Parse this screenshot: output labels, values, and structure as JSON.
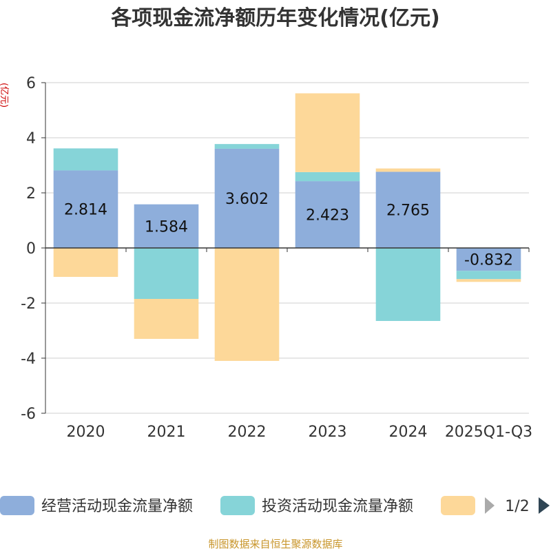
{
  "chart_data": {
    "type": "bar",
    "stacked": true,
    "title": "各项现金流净额历年变化情况(亿元)",
    "ylabel": "(亿元)",
    "xlabel": "",
    "categories": [
      "2020",
      "2021",
      "2022",
      "2023",
      "2024",
      "2025Q1-Q3"
    ],
    "ylim": [
      -6,
      6
    ],
    "yticks": [
      "6",
      "4",
      "2",
      "0",
      "-2",
      "-4",
      "-6"
    ],
    "grid": true,
    "series": [
      {
        "name": "经营活动现金流量净额",
        "color": "#8eaedb",
        "values": [
          2.814,
          1.584,
          3.602,
          2.423,
          2.765,
          -0.832
        ],
        "labels": [
          "2.814",
          "1.584",
          "3.602",
          "2.423",
          "2.765",
          "-0.832"
        ]
      },
      {
        "name": "投资活动现金流量净额",
        "color": "#86d4d8",
        "values": [
          0.8,
          -1.85,
          0.17,
          0.33,
          -2.65,
          -0.3
        ]
      },
      {
        "name": "",
        "color": "#fdd899",
        "values": [
          -1.05,
          -1.45,
          -4.1,
          2.86,
          0.12,
          -0.1
        ]
      }
    ],
    "legend_position": "bottom",
    "legend_page": "1/2",
    "source": "制图数据来自恒生聚源数据库"
  }
}
